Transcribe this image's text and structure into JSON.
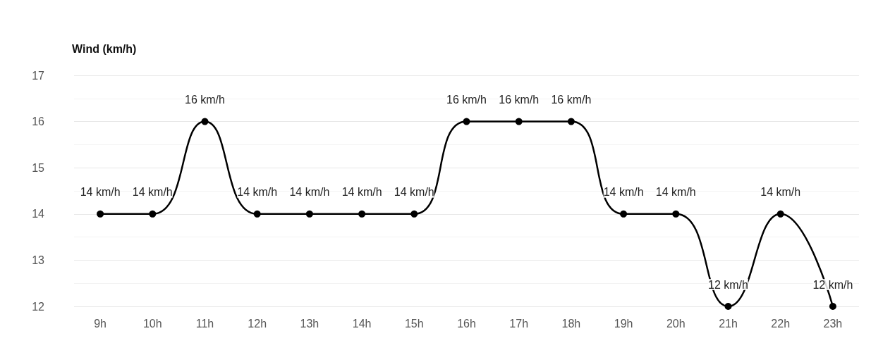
{
  "chart_data": {
    "type": "line",
    "ylabel": "Wind (km/h)",
    "categories": [
      "9h",
      "10h",
      "11h",
      "12h",
      "13h",
      "14h",
      "15h",
      "16h",
      "17h",
      "18h",
      "19h",
      "20h",
      "21h",
      "22h",
      "23h"
    ],
    "series": [
      {
        "color": "#000000",
        "values": [
          14,
          14,
          16,
          14,
          14,
          14,
          14,
          16,
          16,
          16,
          14,
          14,
          12,
          14,
          12
        ],
        "value_labels": [
          "14 km/h",
          "14 km/h",
          "16 km/h",
          "14 km/h",
          "14 km/h",
          "14 km/h",
          "14 km/h",
          "16 km/h",
          "16 km/h",
          "16 km/h",
          "14 km/h",
          "14 km/h",
          "12 km/h",
          "14 km/h",
          "12 km/h"
        ]
      }
    ],
    "ylim": [
      12,
      17
    ],
    "yticks": [
      12,
      13,
      14,
      15,
      16,
      17
    ],
    "grid": "y",
    "marker": "circle",
    "line_style": "solid"
  }
}
